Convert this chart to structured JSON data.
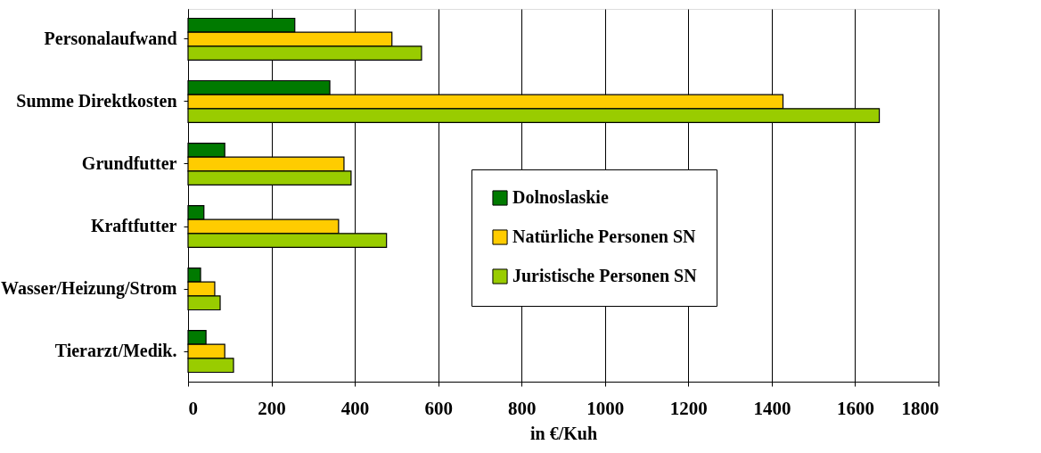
{
  "chart_data": {
    "type": "bar",
    "orientation": "horizontal",
    "xlabel": "in €/Kuh",
    "categories": [
      "Personalaufwand",
      "Summe Direktkosten",
      "Grundfutter",
      "Kraftfutter",
      "Wasser/Heizung/Strom",
      "Tierarzt/Medik."
    ],
    "series": [
      {
        "name": "Dolnoslaskie",
        "color": "#007a00",
        "values": [
          256,
          340,
          88,
          38,
          30,
          43
        ]
      },
      {
        "name": "Natürliche Personen SN",
        "color": "#ffcc00",
        "values": [
          489,
          1427,
          374,
          361,
          64,
          88
        ]
      },
      {
        "name": "Juristische Personen SN",
        "color": "#99cc00",
        "values": [
          560,
          1658,
          391,
          476,
          77,
          109
        ]
      }
    ],
    "xlim": [
      0,
      1800
    ],
    "xticks": [
      0,
      200,
      400,
      600,
      800,
      1000,
      1200,
      1400,
      1600,
      1800
    ],
    "grid": "x",
    "legend": "right"
  }
}
